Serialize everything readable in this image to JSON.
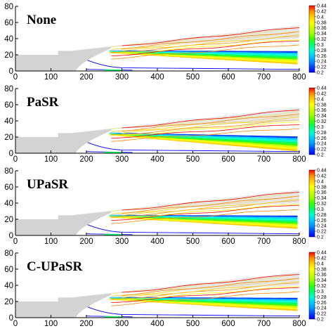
{
  "chart_data": [
    {
      "type": "contour",
      "title": "None",
      "x_ticks": [
        0,
        100,
        200,
        300,
        400,
        500,
        600,
        700,
        800
      ],
      "y_ticks": [
        0,
        20,
        40,
        60,
        80
      ],
      "xlim": [
        0,
        800
      ],
      "ylim": [
        0,
        80
      ],
      "colorbar": {
        "levels": [
          0.44,
          0.42,
          0.4,
          0.38,
          0.36,
          0.34,
          0.32,
          0.3,
          0.28,
          0.26,
          0.24,
          0.22,
          0.2
        ],
        "range": [
          0.2,
          0.44
        ]
      },
      "geometry": {
        "step1": [
          [
            0,
            20
          ],
          [
            120,
            20
          ]
        ],
        "step2": [
          [
            120,
            25
          ],
          [
            160,
            25
          ]
        ],
        "upper_wall": [
          [
            160,
            25
          ],
          [
            800,
            56
          ]
        ]
      }
    },
    {
      "type": "contour",
      "title": "PaSR",
      "x_ticks": [
        0,
        100,
        200,
        300,
        400,
        500,
        600,
        700,
        800
      ],
      "y_ticks": [
        0,
        20,
        40,
        60,
        80
      ],
      "xlim": [
        0,
        800
      ],
      "ylim": [
        0,
        80
      ],
      "colorbar": {
        "levels": [
          0.44,
          0.42,
          0.4,
          0.38,
          0.36,
          0.34,
          0.32,
          0.3,
          0.28,
          0.26,
          0.24,
          0.22,
          0.2
        ],
        "range": [
          0.2,
          0.44
        ]
      },
      "geometry": {
        "step1": [
          [
            0,
            20
          ],
          [
            120,
            20
          ]
        ],
        "step2": [
          [
            120,
            25
          ],
          [
            160,
            25
          ]
        ],
        "upper_wall": [
          [
            160,
            25
          ],
          [
            800,
            56
          ]
        ]
      }
    },
    {
      "type": "contour",
      "title": "UPaSR",
      "x_ticks": [
        0,
        100,
        200,
        300,
        400,
        500,
        600,
        700,
        800
      ],
      "y_ticks": [
        0,
        20,
        40,
        60,
        80
      ],
      "xlim": [
        0,
        800
      ],
      "ylim": [
        0,
        80
      ],
      "colorbar": {
        "levels": [
          0.44,
          0.42,
          0.4,
          0.38,
          0.36,
          0.34,
          0.32,
          0.3,
          0.28,
          0.26,
          0.24,
          0.22,
          0.2
        ],
        "range": [
          0.2,
          0.44
        ]
      },
      "geometry": {
        "step1": [
          [
            0,
            20
          ],
          [
            120,
            20
          ]
        ],
        "step2": [
          [
            120,
            25
          ],
          [
            160,
            25
          ]
        ],
        "upper_wall": [
          [
            160,
            25
          ],
          [
            800,
            56
          ]
        ]
      }
    },
    {
      "type": "contour",
      "title": "C-UPaSR",
      "x_ticks": [
        0,
        100,
        200,
        300,
        400,
        500,
        600,
        700,
        800
      ],
      "y_ticks": [
        0,
        20,
        40,
        60,
        80
      ],
      "xlim": [
        0,
        800
      ],
      "ylim": [
        0,
        80
      ],
      "colorbar": {
        "levels": [
          0.44,
          0.42,
          0.4,
          0.38,
          0.36,
          0.34,
          0.32,
          0.3,
          0.28,
          0.26,
          0.24,
          0.22,
          0.2
        ],
        "range": [
          0.2,
          0.44
        ]
      },
      "geometry": {
        "step1": [
          [
            0,
            20
          ],
          [
            120,
            20
          ]
        ],
        "step2": [
          [
            120,
            25
          ],
          [
            160,
            25
          ]
        ],
        "upper_wall": [
          [
            160,
            25
          ],
          [
            800,
            56
          ]
        ]
      }
    }
  ],
  "colors": {
    "geometry_fill": "#d3d3d3",
    "scale": [
      "#0000ff",
      "#0044ff",
      "#0099ff",
      "#00ccff",
      "#00ffcc",
      "#00ff66",
      "#33ff00",
      "#99ff00",
      "#ccff00",
      "#ffff00",
      "#ffcc00",
      "#ff8800",
      "#ff0000"
    ]
  }
}
